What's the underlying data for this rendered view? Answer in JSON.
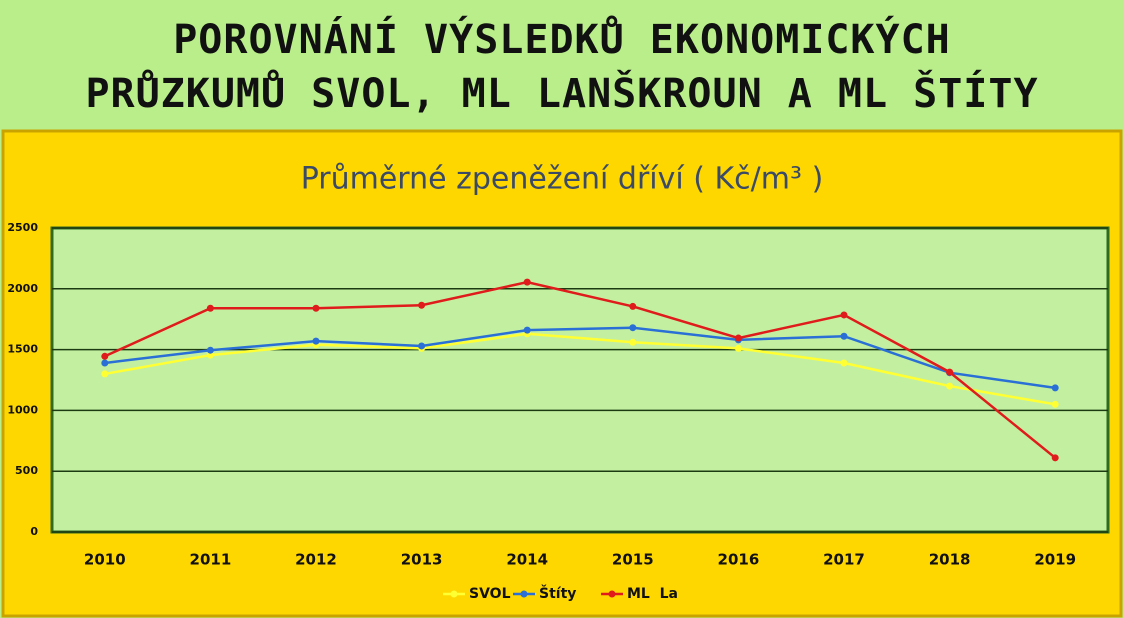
{
  "header": {
    "lines": [
      "POROVNÁNÍ VÝSLEDKŮ EKONOMICKÝCH",
      "PRŮZKUMŮ SVOL, ML LANŠKROUN A ML ŠTÍTY"
    ]
  },
  "chart_data": {
    "type": "line",
    "title": "Průměrné zpeněžení dříví ( Kč/m³ )",
    "categories": [
      "2010",
      "2011",
      "2012",
      "2013",
      "2014",
      "2015",
      "2016",
      "2017",
      "2018",
      "2019"
    ],
    "series": [
      {
        "name": "SVOL",
        "color": "#ffff33",
        "values": [
          1300,
          1455,
          1540,
          1510,
          1630,
          1560,
          1510,
          1390,
          1200,
          1050
        ]
      },
      {
        "name": "Štíty",
        "color": "#2a6fd6",
        "values": [
          1390,
          1495,
          1570,
          1530,
          1660,
          1680,
          1580,
          1610,
          1310,
          1185
        ]
      },
      {
        "name": "ML  La",
        "color": "#e01b1b",
        "values": [
          1445,
          1840,
          1840,
          1865,
          2055,
          1855,
          1595,
          1785,
          1315,
          610
        ]
      }
    ],
    "ylim": [
      0,
      2500
    ],
    "yticks": [
      0,
      500,
      1000,
      1500,
      2000,
      2500
    ],
    "grid": true,
    "legend": "bottom"
  }
}
